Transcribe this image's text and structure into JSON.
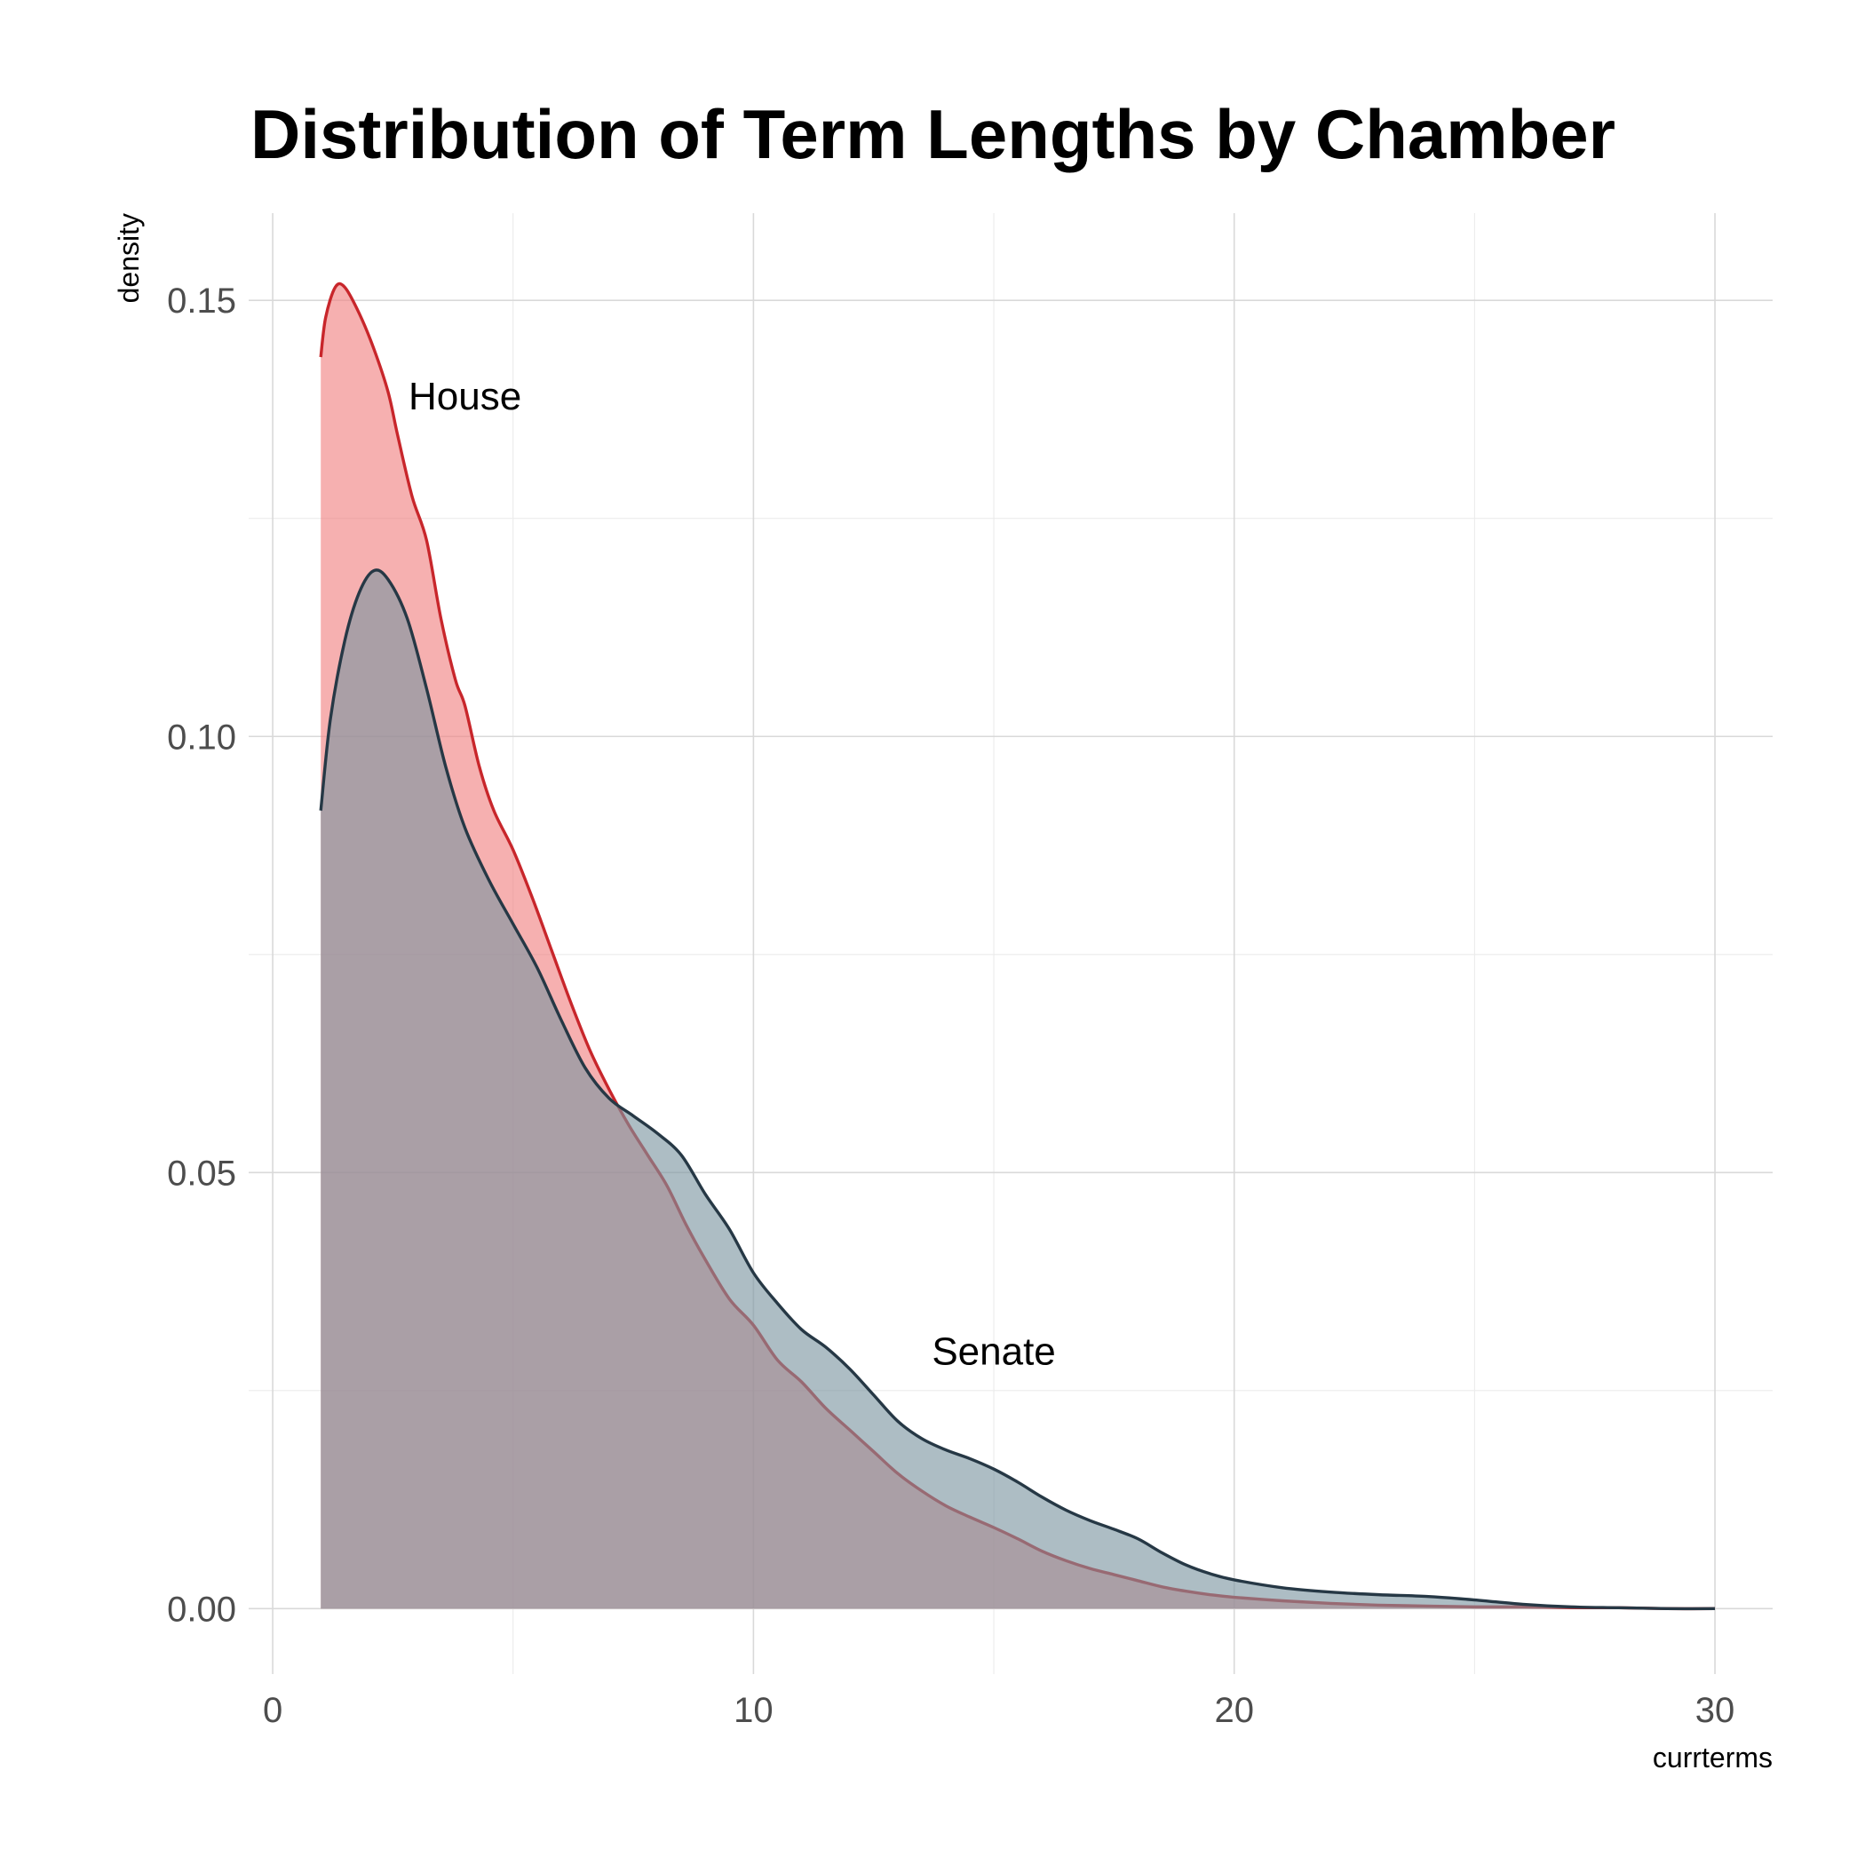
{
  "chart_data": {
    "type": "area",
    "title": "Distribution of Term Lengths by Chamber",
    "xlabel": "currterms",
    "ylabel": "density",
    "xlim": [
      -0.5,
      31.2
    ],
    "ylim": [
      -0.0075,
      0.16
    ],
    "x_ticks": [
      0,
      10,
      20,
      30
    ],
    "x_tick_labels": [
      "0",
      "10",
      "20",
      "30"
    ],
    "y_ticks": [
      0.0,
      0.05,
      0.1,
      0.15
    ],
    "y_tick_labels": [
      "0.00",
      "0.05",
      "0.10",
      "0.15"
    ],
    "grid": true,
    "legend": "none",
    "annotations": [
      {
        "text": "House",
        "x": 4.0,
        "y": 0.139
      },
      {
        "text": "Senate",
        "x": 15.0,
        "y": 0.0295
      }
    ],
    "series": [
      {
        "name": "House",
        "fill": "#f08080",
        "fill_opacity": 0.62,
        "stroke": "#c8262b",
        "x": [
          1.0,
          1.1,
          1.3,
          1.5,
          1.8,
          2.1,
          2.4,
          2.6,
          2.9,
          3.2,
          3.5,
          3.8,
          4.0,
          4.3,
          4.6,
          5.0,
          5.4,
          5.8,
          6.2,
          6.6,
          7.0,
          7.4,
          7.8,
          8.2,
          8.6,
          9.0,
          9.5,
          10.0,
          10.5,
          11.0,
          11.5,
          12.0,
          12.5,
          13.0,
          13.5,
          14.0,
          14.5,
          15.0,
          15.5,
          16.0,
          16.5,
          17.0,
          17.5,
          18.0,
          18.5,
          19.0,
          19.5,
          20.0,
          21.0,
          22.0,
          23.0,
          24.0,
          25.0,
          26.0,
          27.0,
          28.0,
          29.0,
          30.0
        ],
        "y": [
          0.1435,
          0.148,
          0.1515,
          0.1515,
          0.1485,
          0.1445,
          0.1395,
          0.1345,
          0.1275,
          0.1225,
          0.1135,
          0.1065,
          0.1035,
          0.0965,
          0.0915,
          0.087,
          0.0815,
          0.0755,
          0.0695,
          0.064,
          0.0595,
          0.0555,
          0.052,
          0.0485,
          0.044,
          0.04,
          0.0355,
          0.0325,
          0.0285,
          0.026,
          0.023,
          0.0205,
          0.018,
          0.0155,
          0.0135,
          0.0118,
          0.0105,
          0.0093,
          0.008,
          0.0066,
          0.0055,
          0.0046,
          0.0039,
          0.0032,
          0.0025,
          0.002,
          0.0016,
          0.0013,
          0.0009,
          0.0006,
          0.0004,
          0.0003,
          0.0002,
          0.0002,
          0.0001,
          0.0001,
          0.0,
          0.0
        ]
      },
      {
        "name": "Senate",
        "fill": "#7a95a0",
        "fill_opacity": 0.62,
        "stroke": "#263845",
        "x": [
          1.0,
          1.2,
          1.5,
          1.8,
          2.1,
          2.4,
          2.8,
          3.2,
          3.6,
          4.0,
          4.5,
          5.0,
          5.5,
          6.0,
          6.5,
          7.0,
          7.5,
          8.0,
          8.5,
          9.0,
          9.5,
          10.0,
          10.5,
          11.0,
          11.5,
          12.0,
          12.5,
          13.0,
          13.5,
          14.0,
          14.5,
          15.0,
          15.5,
          16.0,
          16.5,
          17.0,
          17.5,
          18.0,
          18.5,
          19.0,
          19.5,
          20.0,
          21.0,
          22.0,
          23.0,
          24.0,
          25.0,
          26.0,
          27.0,
          28.0,
          29.0,
          30.0
        ],
        "y": [
          0.0915,
          0.102,
          0.111,
          0.1165,
          0.119,
          0.118,
          0.1135,
          0.1055,
          0.0965,
          0.0895,
          0.0835,
          0.0785,
          0.0735,
          0.0675,
          0.062,
          0.0585,
          0.0565,
          0.0545,
          0.052,
          0.0475,
          0.0435,
          0.0385,
          0.035,
          0.032,
          0.03,
          0.0275,
          0.0245,
          0.0215,
          0.0195,
          0.0182,
          0.0172,
          0.016,
          0.0145,
          0.0128,
          0.0113,
          0.0101,
          0.0091,
          0.008,
          0.0064,
          0.005,
          0.004,
          0.0033,
          0.0024,
          0.0019,
          0.0016,
          0.0014,
          0.001,
          0.0005,
          0.0002,
          0.0001,
          0.0,
          0.0
        ]
      }
    ]
  }
}
